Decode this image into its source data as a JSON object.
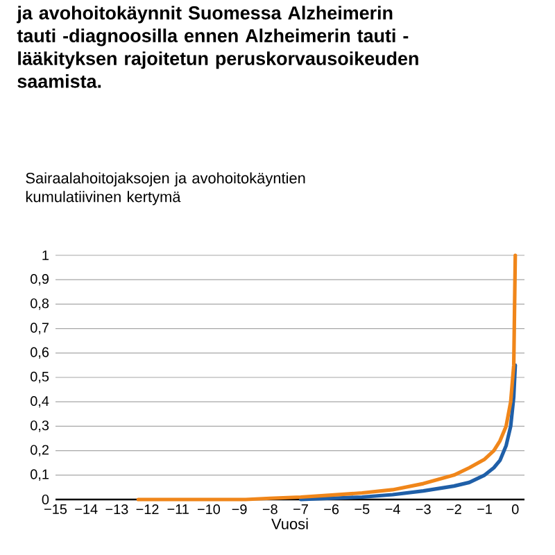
{
  "chart_data": {
    "type": "line",
    "title": "ja avohoitokäynnit Suomessa Alzheimerin tauti -diagnoosilla ennen Alzheimerin tauti -lääkityksen rajoitetun peruskorvausoikeuden saamista.",
    "subtitle": "Sairaalahoitojaksojen ja avohoitokäyntien kumulatiivinen kertymä",
    "xlabel": "Vuosi",
    "xlim": [
      -15,
      0.3
    ],
    "ylim": [
      0,
      1
    ],
    "xticks": [
      {
        "value": -15,
        "label": "−15"
      },
      {
        "value": -14,
        "label": "−14"
      },
      {
        "value": -13,
        "label": "−13"
      },
      {
        "value": -12,
        "label": "−12"
      },
      {
        "value": -11,
        "label": "−11"
      },
      {
        "value": -10,
        "label": "−10"
      },
      {
        "value": -9,
        "label": "−9"
      },
      {
        "value": -8,
        "label": "−8"
      },
      {
        "value": -7,
        "label": "−7"
      },
      {
        "value": -6,
        "label": "−6"
      },
      {
        "value": -5,
        "label": "−5"
      },
      {
        "value": -4,
        "label": "−4"
      },
      {
        "value": -3,
        "label": "−3"
      },
      {
        "value": -2,
        "label": "−2"
      },
      {
        "value": -1,
        "label": "−1"
      },
      {
        "value": 0,
        "label": "0"
      }
    ],
    "yticks": [
      0,
      {
        "value": 0.1,
        "label": "0,1"
      },
      {
        "value": 0.2,
        "label": "0,2"
      },
      {
        "value": 0.3,
        "label": "0,3"
      },
      {
        "value": 0.4,
        "label": "0,4"
      },
      {
        "value": 0.5,
        "label": "0,5"
      },
      {
        "value": 0.6,
        "label": "0,6"
      },
      {
        "value": 0.7,
        "label": "0,7"
      },
      {
        "value": 0.8,
        "label": "0,8"
      },
      {
        "value": 0.9,
        "label": "0,9"
      },
      {
        "value": 1,
        "label": "1"
      }
    ],
    "grid": "y",
    "marker": "none",
    "line_style": "solid",
    "series": [
      {
        "color": "#1f5fa8",
        "x": [
          -7,
          -6,
          -5,
          -4,
          -3,
          -2,
          -1.5,
          -1,
          -0.7,
          -0.5,
          -0.3,
          -0.15,
          -0.05,
          0
        ],
        "values": [
          0,
          0.005,
          0.01,
          0.02,
          0.035,
          0.055,
          0.07,
          0.1,
          0.13,
          0.16,
          0.22,
          0.3,
          0.42,
          0.55
        ]
      },
      {
        "color": "#f0861a",
        "x": [
          -12.3,
          -11.8,
          -9.6,
          -9.2,
          -8.8,
          -8,
          -7,
          -6,
          -5,
          -4,
          -3,
          -2,
          -1.5,
          -1,
          -0.7,
          -0.5,
          -0.3,
          -0.15,
          -0.05,
          0
        ],
        "values": [
          0,
          0,
          0,
          0,
          0,
          0.005,
          0.01,
          0.018,
          0.027,
          0.04,
          0.065,
          0.1,
          0.13,
          0.165,
          0.2,
          0.24,
          0.3,
          0.4,
          0.55,
          1
        ]
      }
    ]
  }
}
